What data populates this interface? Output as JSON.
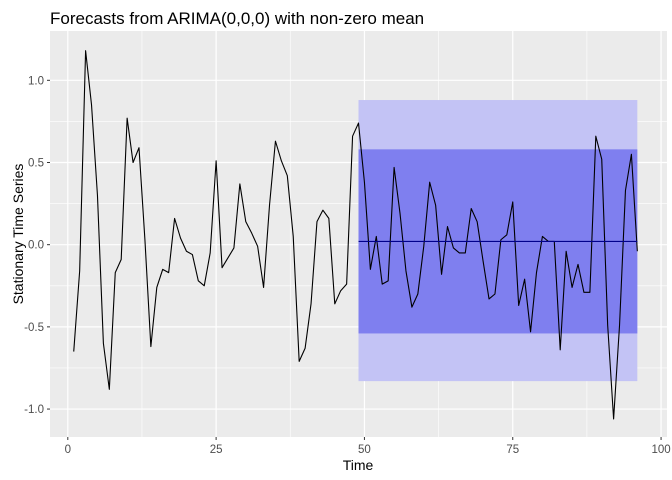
{
  "chart_data": {
    "type": "line",
    "title": "Forecasts from ARIMA(0,0,0) with non-zero mean",
    "xlabel": "Time",
    "ylabel": "Stationary Time Series",
    "xlim": [
      -3,
      101
    ],
    "ylim": [
      -1.17,
      1.3
    ],
    "xticks": [
      0,
      25,
      50,
      75,
      100
    ],
    "xtick_labels": [
      "0",
      "25",
      "50",
      "75",
      "100"
    ],
    "yticks": [
      -1.0,
      -0.5,
      0.0,
      0.5,
      1.0
    ],
    "ytick_labels": [
      "-1.0",
      "-0.5",
      "0.0",
      "0.5",
      "1.0"
    ],
    "grid": true,
    "legend": "none",
    "colors": {
      "panel": "#ebebeb",
      "grid": "#ffffff",
      "series": "#000000",
      "band80": "#7f7fef",
      "band95": "#c3c3f5",
      "forecast": "#00008b"
    },
    "series": [
      {
        "x": [
          1,
          2,
          3,
          4,
          5,
          6,
          7,
          8,
          9,
          10,
          11,
          12,
          13,
          14,
          15,
          16,
          17,
          18,
          19,
          20,
          21,
          22,
          23,
          24,
          25,
          26,
          27,
          28,
          29,
          30,
          31,
          32,
          33,
          34,
          35,
          36,
          37,
          38,
          39,
          40,
          41,
          42,
          43,
          44,
          45,
          46,
          47,
          48,
          49,
          50,
          51,
          52,
          53,
          54,
          55,
          56,
          57,
          58,
          59,
          60,
          61,
          62,
          63,
          64,
          65,
          66,
          67,
          68,
          69,
          70,
          71,
          72,
          73,
          74,
          75,
          76,
          77,
          78,
          79,
          80,
          81,
          82,
          83,
          84,
          85,
          86,
          87,
          88,
          89,
          90,
          91,
          92,
          93,
          94,
          95,
          96
        ],
        "values": [
          -0.65,
          -0.16,
          1.18,
          0.85,
          0.3,
          -0.6,
          -0.88,
          -0.17,
          -0.09,
          0.77,
          0.5,
          0.59,
          0.03,
          -0.62,
          -0.26,
          -0.15,
          -0.17,
          0.16,
          0.04,
          -0.04,
          -0.06,
          -0.22,
          -0.25,
          -0.05,
          0.51,
          -0.14,
          -0.08,
          -0.02,
          0.37,
          0.14,
          0.07,
          -0.01,
          -0.26,
          0.24,
          0.63,
          0.51,
          0.42,
          0.05,
          -0.71,
          -0.63,
          -0.36,
          0.14,
          0.21,
          0.16,
          -0.36,
          -0.28,
          -0.24,
          0.66,
          0.74,
          0.38,
          -0.15,
          0.05,
          -0.24,
          -0.22,
          0.47,
          0.19,
          -0.16,
          -0.38,
          -0.3,
          -0.01,
          0.38,
          0.24,
          -0.18,
          0.11,
          -0.02,
          -0.05,
          -0.05,
          0.22,
          0.14,
          -0.1,
          -0.33,
          -0.3,
          0.03,
          0.06,
          0.26,
          -0.37,
          -0.21,
          -0.53,
          -0.17,
          0.05,
          0.02,
          0.02,
          -0.64,
          -0.04,
          -0.26,
          -0.12,
          -0.29,
          -0.29,
          0.66,
          0.52,
          -0.49,
          -1.06,
          -0.49,
          0.33,
          0.55,
          -0.04
        ]
      }
    ],
    "forecast": {
      "x_start": 49,
      "x_end": 96,
      "mean": 0.02,
      "lo80": -0.54,
      "hi80": 0.58,
      "lo95": -0.83,
      "hi95": 0.88
    }
  }
}
